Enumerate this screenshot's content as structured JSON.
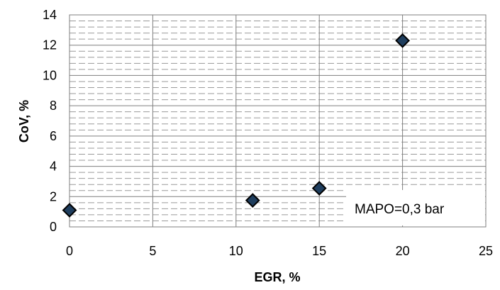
{
  "chart_data": {
    "type": "scatter",
    "title": "",
    "xlabel": "EGR, %",
    "ylabel": "CoV, %",
    "xlim": [
      0,
      25
    ],
    "ylim": [
      0,
      14
    ],
    "xticks": [
      "0",
      "5",
      "10",
      "15",
      "20",
      "25"
    ],
    "yticks": [
      "0",
      "2",
      "4",
      "6",
      "8",
      "10",
      "12",
      "14"
    ],
    "grid": true,
    "marker": "diamond",
    "colors": {
      "marker_fill": "#1f3e5e",
      "marker_edge": "#000000",
      "grid_major": "#7f7f7f",
      "grid_minor": "#9a9a9a"
    },
    "series": [
      {
        "x": [
          0,
          11,
          15,
          20
        ],
        "y": [
          1.1,
          1.75,
          2.55,
          12.3
        ]
      }
    ],
    "annotations": [
      {
        "text": "MAPO=0,3 bar"
      }
    ]
  }
}
